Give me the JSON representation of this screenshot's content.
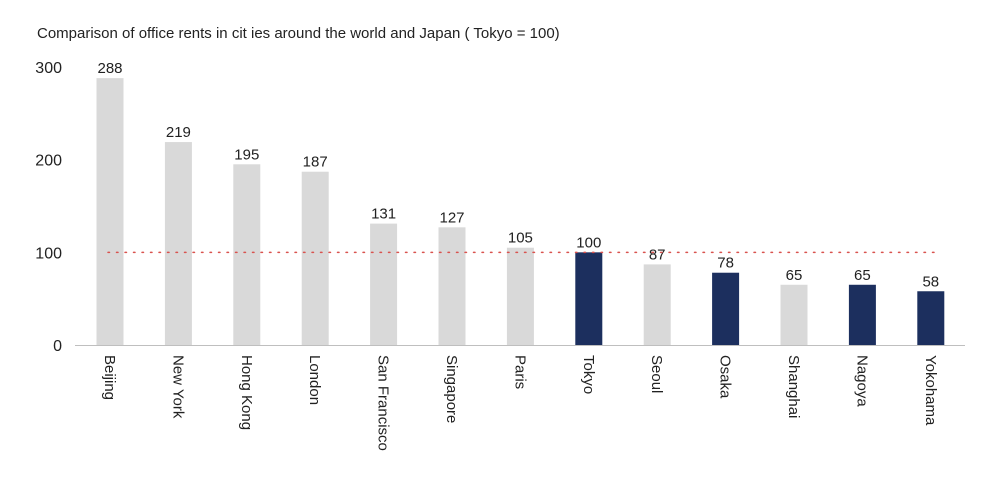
{
  "chart_data": {
    "type": "bar",
    "title": "Comparison of office rents in cit ies around the world and Japan ( Tokyo = 100)",
    "categories": [
      "Beijing",
      "New York",
      "Hong Kong",
      "London",
      "San Francisco",
      "Singapore",
      "Paris",
      "Tokyo",
      "Seoul",
      "Osaka",
      "Shanghai",
      "Nagoya",
      "Yokohama"
    ],
    "values": [
      288,
      219,
      195,
      187,
      131,
      127,
      105,
      100,
      87,
      78,
      65,
      65,
      58
    ],
    "highlighted": [
      "Tokyo",
      "Osaka",
      "Nagoya",
      "Yokohama"
    ],
    "ylim": [
      0,
      300
    ],
    "yticks": [
      0,
      100,
      200,
      300
    ],
    "reference_line": 100,
    "xlabel": "",
    "ylabel": "",
    "grid": false,
    "colors": {
      "default_bar": "#d9d9d9",
      "highlight_bar": "#1c2f5e",
      "reference_line": "#d9534f",
      "axis": "#bfbfbf"
    }
  }
}
